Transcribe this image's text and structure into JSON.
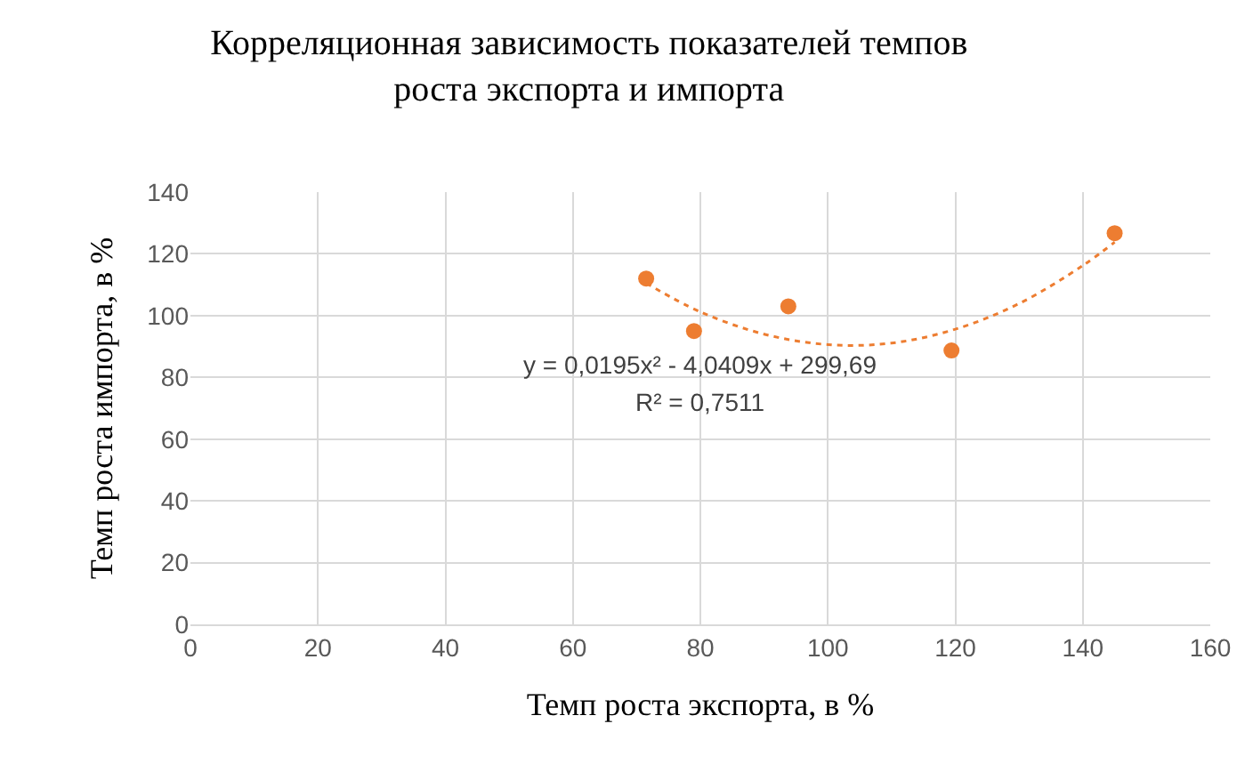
{
  "chart_data": {
    "type": "scatter",
    "title": "Корреляционная зависимость показателей темпов роста экспорта и импорта",
    "xlabel": "Темп роста экспорта, в %",
    "ylabel": "Темп роста импорта, в %",
    "xlim": [
      0,
      160
    ],
    "xticks": [
      0,
      20,
      40,
      60,
      80,
      100,
      120,
      140,
      160
    ],
    "ylim": [
      0,
      140
    ],
    "yticks": [
      0,
      20,
      40,
      60,
      80,
      100,
      120,
      140
    ],
    "grid": true,
    "marker": "circle",
    "series": [
      {
        "color": "#ed7d31",
        "x": [
          71.5,
          79,
          93.8,
          119.4,
          145
        ],
        "values": [
          112,
          95,
          103,
          88.7,
          126.7
        ]
      },
      {
        "type": "line",
        "color": "#ed7d31",
        "line_style": "dotted",
        "marker": "none",
        "x": [
          71.5,
          80,
          90,
          100,
          110,
          120,
          130,
          140,
          145
        ],
        "values": [
          110.5,
          101.2,
          94,
          90.6,
          91.1,
          95.6,
          103.9,
          116.2,
          123.8
        ]
      }
    ],
    "annotations": [
      "y = 0,0195x² - 4,0409x + 299,69",
      "R² = 0,7511"
    ]
  }
}
